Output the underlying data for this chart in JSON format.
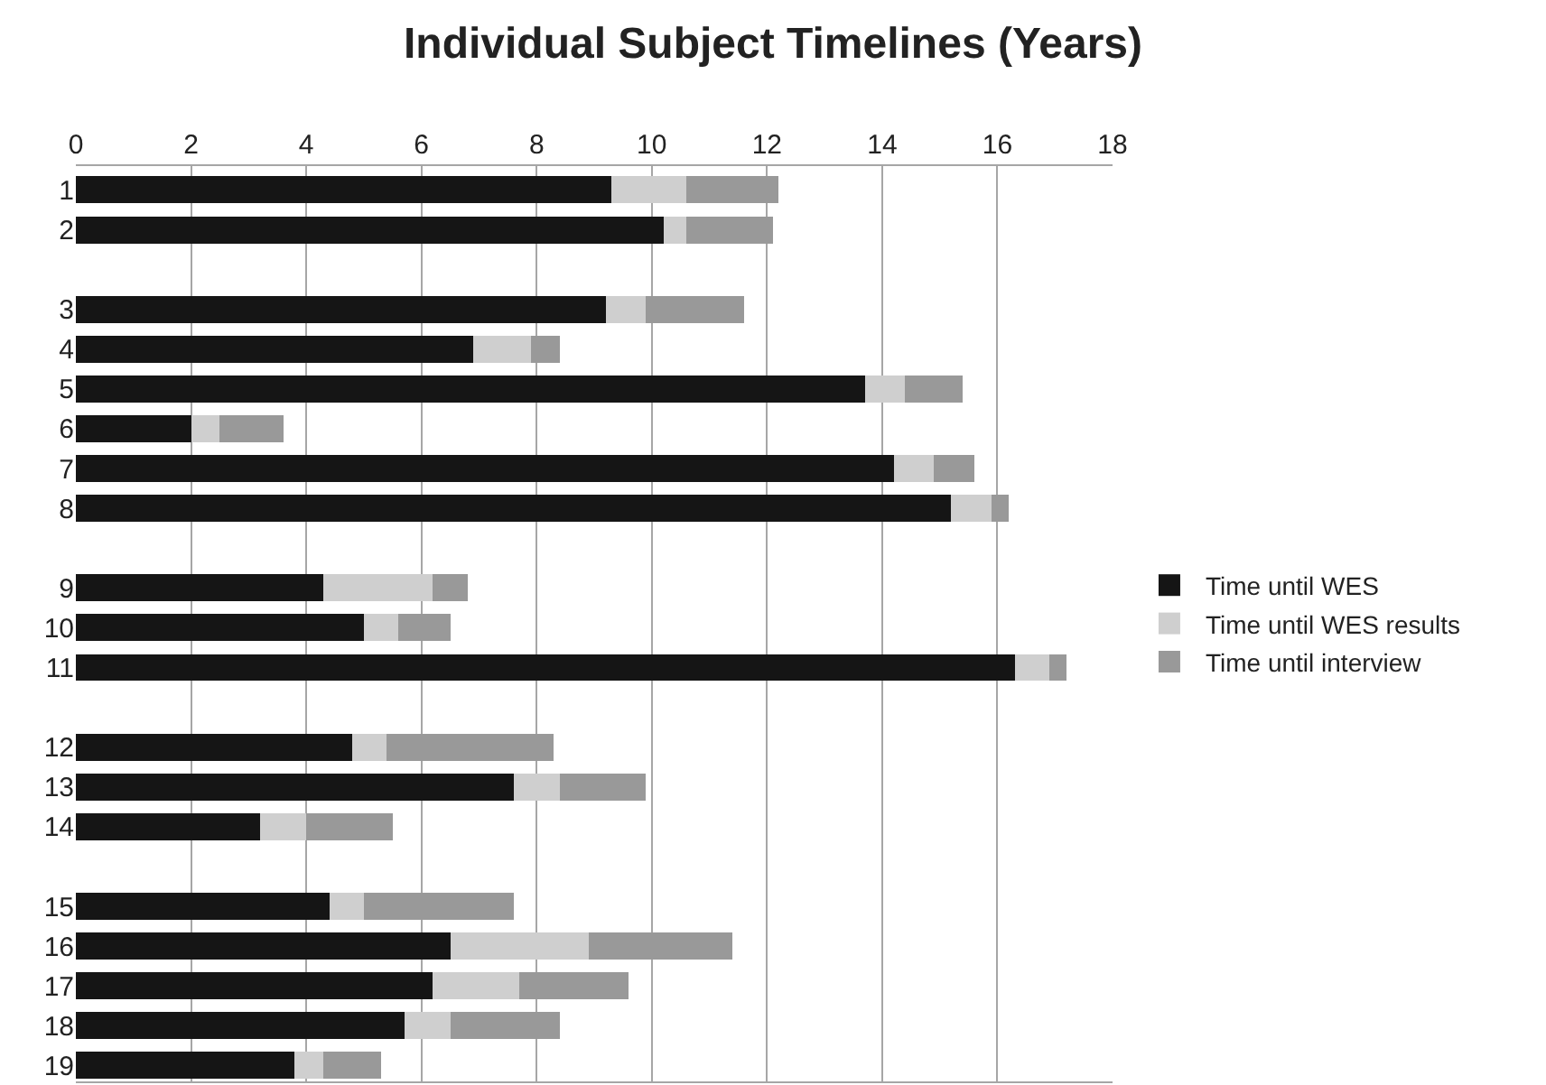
{
  "chart_data": {
    "type": "bar",
    "orientation": "horizontal",
    "stacked": true,
    "title": "Individual Subject Timelines (Years)",
    "categories": [
      "1",
      "2",
      null,
      "3",
      "4",
      "5",
      "6",
      "7",
      "8",
      null,
      "9",
      "10",
      "11",
      null,
      "12",
      "13",
      "14",
      null,
      "15",
      "16",
      "17",
      "18",
      "19"
    ],
    "series": [
      {
        "name": "Time until WES",
        "color": "#151515",
        "values": [
          9.3,
          10.2,
          null,
          9.2,
          6.9,
          13.7,
          2.0,
          14.2,
          15.2,
          null,
          4.3,
          5.0,
          16.3,
          null,
          4.8,
          7.6,
          3.2,
          null,
          4.4,
          6.5,
          6.2,
          5.7,
          3.8
        ]
      },
      {
        "name": "Time until WES results",
        "color": "#cfcfcf",
        "values": [
          1.3,
          0.4,
          null,
          0.7,
          1.0,
          0.7,
          0.5,
          0.7,
          0.7,
          null,
          1.9,
          0.6,
          0.6,
          null,
          0.6,
          0.8,
          0.8,
          null,
          0.6,
          2.4,
          1.5,
          0.8,
          0.5
        ]
      },
      {
        "name": "Time until interview",
        "color": "#999999",
        "values": [
          1.6,
          1.5,
          null,
          1.7,
          0.5,
          1.0,
          1.1,
          0.7,
          0.3,
          null,
          0.6,
          0.9,
          0.3,
          null,
          2.9,
          1.5,
          1.5,
          null,
          2.6,
          2.5,
          1.9,
          1.9,
          1.0
        ]
      }
    ],
    "xlim": [
      0,
      18
    ],
    "xticks": [
      0,
      2,
      4,
      6,
      8,
      10,
      12,
      14,
      16,
      18
    ],
    "grid": "x",
    "legend": "right"
  }
}
